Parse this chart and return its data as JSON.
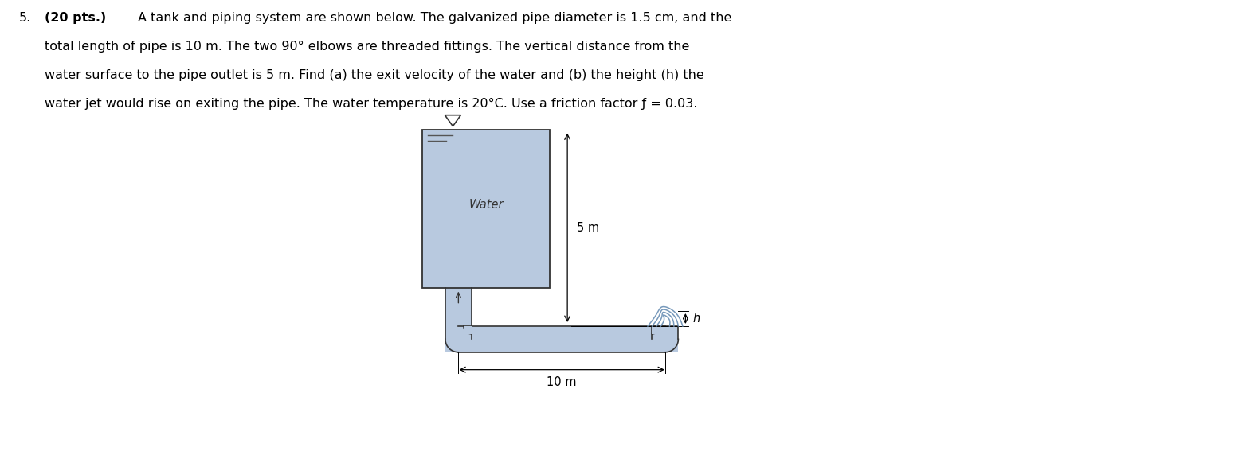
{
  "background_color": "#ffffff",
  "text_color": "#000000",
  "tank_color": "#b8c9df",
  "pipe_color": "#b8c9df",
  "outline_color": "#333333",
  "water_label": "Water",
  "dim_5m": "5 m",
  "dim_10m": "10 m",
  "dim_h": "h",
  "jet_color": "#7799bb"
}
